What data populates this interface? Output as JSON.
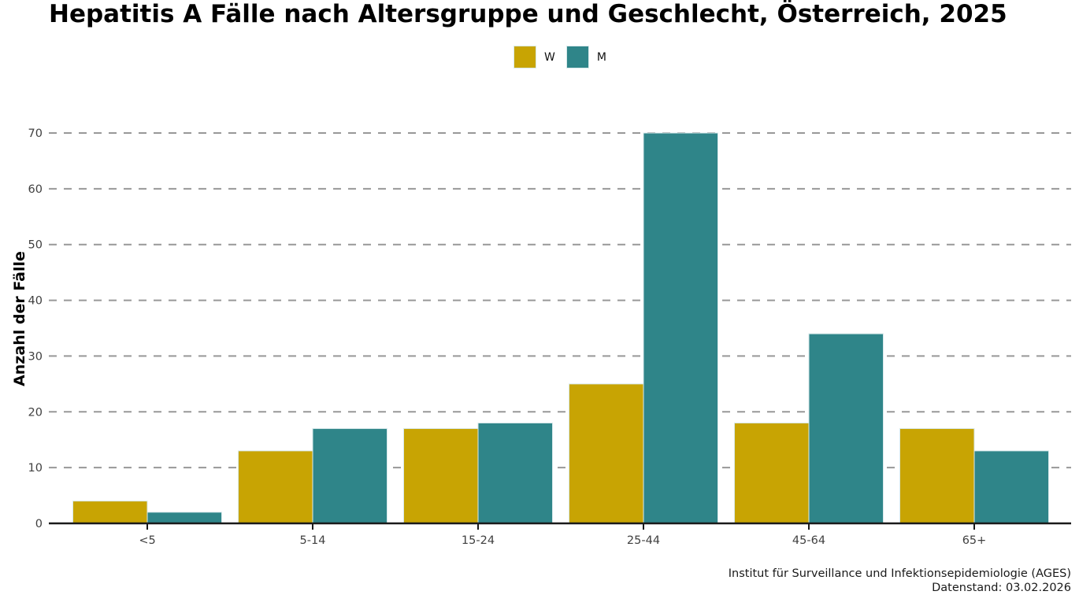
{
  "title": "Hepatitis A Fälle nach Altersgruppe und Geschlecht, Österreich, 2025",
  "footer": {
    "line1": "Institut für Surveillance und Infektionsepidemiologie (AGES)",
    "line2": "Datenstand: 03.02.2026"
  },
  "chart_data": {
    "type": "bar",
    "title": "Hepatitis A Fälle nach Altersgruppe und Geschlecht, Österreich, 2025",
    "categories": [
      "<5",
      "5-14",
      "15-24",
      "25-44",
      "45-64",
      "65+"
    ],
    "series": [
      {
        "name": "W",
        "color": "#C8A403",
        "values": [
          4,
          13,
          17,
          25,
          18,
          17
        ]
      },
      {
        "name": "M",
        "color": "#2F8589",
        "values": [
          2,
          17,
          18,
          70,
          34,
          13
        ]
      }
    ],
    "xlabel": "",
    "ylabel": "Anzahl der Fälle",
    "ylim": [
      0,
      70
    ],
    "yticks": [
      0,
      10,
      20,
      30,
      40,
      50,
      60,
      70
    ],
    "grid": "horizontal-dashed",
    "legend_position": "top-center",
    "colors": {
      "gridline": "#989898",
      "axis": "#1a1a1a",
      "tick_label": "#404040",
      "bar_edge": "#d8e9eb"
    }
  }
}
